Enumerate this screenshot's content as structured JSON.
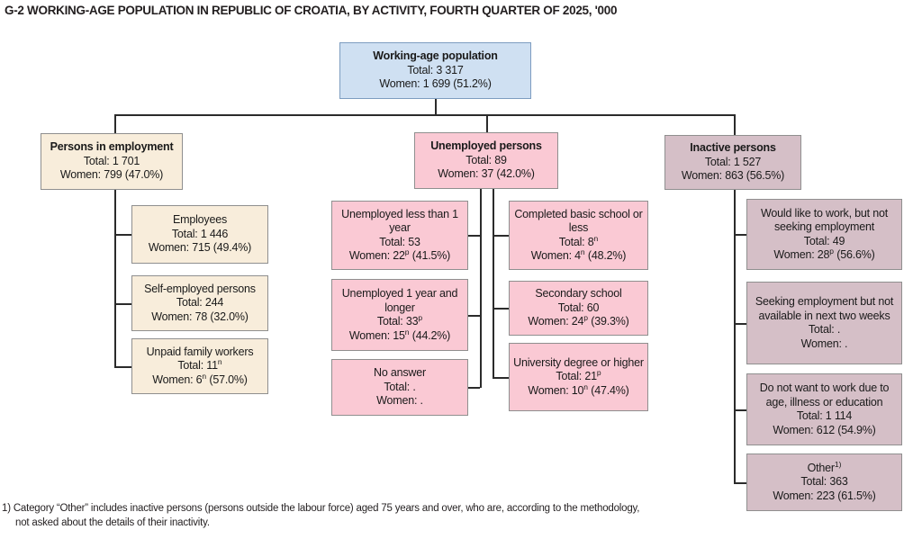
{
  "title": "G-2  WORKING-AGE POPULATION IN REPUBLIC OF CROATIA, BY ACTIVITY, FOURTH QUARTER OF 2025, '000",
  "colors": {
    "root_fill": "#cfe0f2",
    "root_border": "#7d9cc0",
    "employment_fill": "#f8eddb",
    "unemployed_fill": "#fac9d4",
    "inactive_fill": "#d5bfc7",
    "box_border": "#8f8f8f",
    "connector": "#2b2b2b"
  },
  "root": {
    "label": "Working-age population",
    "total": "Total: 3 317",
    "women": "Women: 1 699 (51.2%)"
  },
  "employment": {
    "header": {
      "label": "Persons in employment",
      "total": "Total:  1 701",
      "women": "Women: 799 (47.0%)"
    },
    "children": [
      {
        "label": "Employees",
        "total": "Total: 1 446",
        "women": "Women: 715 (49.4%)"
      },
      {
        "label": "Self-employed persons",
        "total": "Total: 244",
        "women": "Women: 78 (32.0%)"
      },
      {
        "label": "Unpaid family workers",
        "total": "Total: 11^{n}",
        "women": "Women: 6^{n} (57.0%)"
      }
    ]
  },
  "unemployed": {
    "header": {
      "label": "Unemployed persons",
      "total": "Total: 89",
      "women": "Women: 37 (42.0%)"
    },
    "duration": [
      {
        "label": "Unemployed less than 1 year",
        "total": "Total: 53",
        "women": "Women: 22^{p} (41.5%)"
      },
      {
        "label": "Unemployed 1 year and longer",
        "total": "Total: 33^{p}",
        "women": "Women: 15^{n} (44.2%)"
      },
      {
        "label": "No answer",
        "total": "Total: .",
        "women": "Women: ."
      }
    ],
    "education": [
      {
        "label": "Completed basic school or less",
        "total": "Total: 8^{n}",
        "women": "Women: 4^{n} (48.2%)"
      },
      {
        "label": "Secondary school",
        "total": "Total: 60",
        "women": "Women: 24^{p} (39.3%)"
      },
      {
        "label": "University degree or higher",
        "total": "Total: 21^{p}",
        "women": "Women: 10^{n} (47.4%)"
      }
    ]
  },
  "inactive": {
    "header": {
      "label": "Inactive persons",
      "total": "Total: 1 527",
      "women": "Women: 863 (56.5%)"
    },
    "children": [
      {
        "label": "Would like to work, but not seeking employment",
        "total": "Total: 49",
        "women": "Women: 28^{p} (56.6%)"
      },
      {
        "label": "Seeking employment but not available in next two weeks",
        "total": "Total: .",
        "women": "Women: ."
      },
      {
        "label": "Do not want to work due to age, illness or education",
        "total": "Total: 1 114",
        "women": "Women: 612 (54.9%)"
      },
      {
        "label": "Other^{1)}",
        "total": "Total: 363",
        "women": "Women: 223 (61.5%)"
      }
    ]
  },
  "footnote": {
    "line1": "1) Category “Other” includes inactive persons (persons outside the labour force) aged 75 years and over, who are, according to the methodology,",
    "line2": "not asked about the details of their inactivity."
  }
}
